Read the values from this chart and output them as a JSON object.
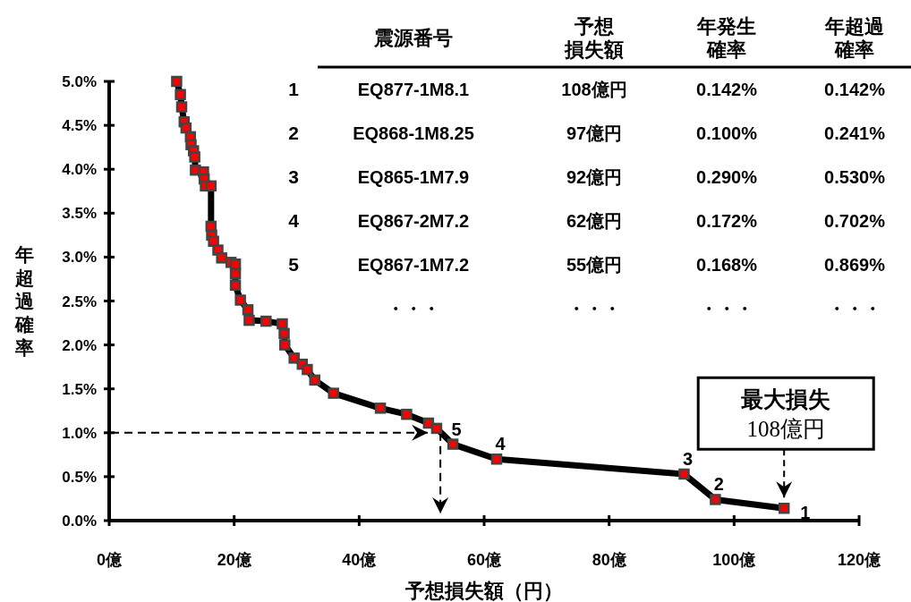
{
  "chart_data": {
    "type": "line",
    "xlabel": "予想損失額（円）",
    "ylabel": "年超過確率",
    "xlim": [
      0,
      120
    ],
    "ylim": [
      0,
      5
    ],
    "xticks": [
      {
        "value": 0,
        "label": "0億"
      },
      {
        "value": 20,
        "label": "20億"
      },
      {
        "value": 40,
        "label": "40億"
      },
      {
        "value": 60,
        "label": "60億"
      },
      {
        "value": 80,
        "label": "80億"
      },
      {
        "value": 100,
        "label": "100億"
      },
      {
        "value": 120,
        "label": "120億"
      }
    ],
    "yticks": [
      {
        "value": 0,
        "label": "0.0%"
      },
      {
        "value": 0.5,
        "label": "0.5%"
      },
      {
        "value": 1,
        "label": "1.0%"
      },
      {
        "value": 1.5,
        "label": "1.5%"
      },
      {
        "value": 2,
        "label": "2.0%"
      },
      {
        "value": 2.5,
        "label": "2.5%"
      },
      {
        "value": 3,
        "label": "3.0%"
      },
      {
        "value": 3.5,
        "label": "3.5%"
      },
      {
        "value": 4,
        "label": "4.0%"
      },
      {
        "value": 4.5,
        "label": "4.5%"
      },
      {
        "value": 5,
        "label": "5.0%"
      }
    ],
    "marker": "square",
    "line_style": "solid",
    "series": [
      {
        "color": "#000000",
        "x": [
          10.8,
          11.4,
          11.6,
          12.0,
          12.3,
          13.0,
          13.1,
          13.5,
          13.7,
          13.8,
          15.1,
          15.2,
          15.4,
          16.3,
          16.3,
          16.4,
          16.7,
          17.4,
          18.0,
          19.5,
          20.2,
          20.2,
          20.2,
          21.0,
          22.2,
          22.4,
          25.1,
          27.7,
          28.0,
          28.1,
          29.6,
          30.9,
          31.7,
          32.9,
          35.9,
          43.4,
          47.6,
          51.1,
          52.4,
          55,
          62,
          92,
          97,
          108
        ],
        "values": [
          5.0,
          4.85,
          4.71,
          4.54,
          4.47,
          4.37,
          4.28,
          4.21,
          4.14,
          3.99,
          3.97,
          3.89,
          3.81,
          3.81,
          3.35,
          3.25,
          3.18,
          3.08,
          2.99,
          2.94,
          2.92,
          2.81,
          2.68,
          2.51,
          2.4,
          2.28,
          2.27,
          2.24,
          2.13,
          2.0,
          1.85,
          1.78,
          1.72,
          1.6,
          1.45,
          1.28,
          1.21,
          1.11,
          1.05,
          0.87,
          0.7,
          0.53,
          0.24,
          0.14
        ],
        "colors": [
          "#ff0000",
          "#ff0000",
          "#ff0000",
          "#ff0000",
          "#ff0000",
          "#ff0000",
          "#ff0000",
          "#ff0000",
          "#ff0000",
          "#ff0000",
          "#ff0000",
          "#ff0000",
          "#ff0000",
          "#ff0000",
          "#ff0000",
          "#ff0000",
          "#ff0000",
          "#ff0000",
          "#ff0000",
          "#ff0000",
          "#ff0000",
          "#ff0000",
          "#ff0000",
          "#ff0000",
          "#ff0000",
          "#ff0000",
          "#ff0000",
          "#ff0000",
          "#ff0000",
          "#ff0000",
          "#ff0000",
          "#ff0000",
          "#ff0000",
          "#ff0000",
          "#ff0000",
          "#ff0000",
          "#ff0000",
          "#ff0000",
          "#ff0000",
          "#ff0000",
          "#ff0000",
          "#ff0000",
          "#ff0000",
          "#ff0000"
        ]
      }
    ],
    "ref_lines": [
      {
        "axis": "y",
        "value": 1.0,
        "line_style": "dashed"
      },
      {
        "axis": "x",
        "value": 53,
        "line_style": "dashed"
      }
    ],
    "annotations": [
      "震源番号",
      "予想損失額",
      "年発生確率",
      "年超過確率",
      "1",
      "EQ877-1M8.1",
      "108億円",
      "0.142%",
      "0.142%",
      "2",
      "EQ868-1M8.25",
      "97億円",
      "0.100%",
      "0.241%",
      "3",
      "EQ865-1M7.9",
      "92億円",
      "0.290%",
      "0.530%",
      "4",
      "EQ867-2M7.2",
      "62億円",
      "0.172%",
      "0.702%",
      "5",
      "EQ867-1M7.2",
      "55億円",
      "0.168%",
      "0.869%",
      "・・・",
      "・・・",
      "・・・",
      "・・・",
      "最大損失\n108億円",
      {
        "text": "1",
        "x": 108,
        "y": 0.14
      },
      {
        "text": "2",
        "x": 97,
        "y": 0.24
      },
      {
        "text": "3",
        "x": 92,
        "y": 0.53
      },
      {
        "text": "4",
        "x": 62,
        "y": 0.7
      },
      {
        "text": "5",
        "x": 55,
        "y": 0.87
      }
    ]
  }
}
